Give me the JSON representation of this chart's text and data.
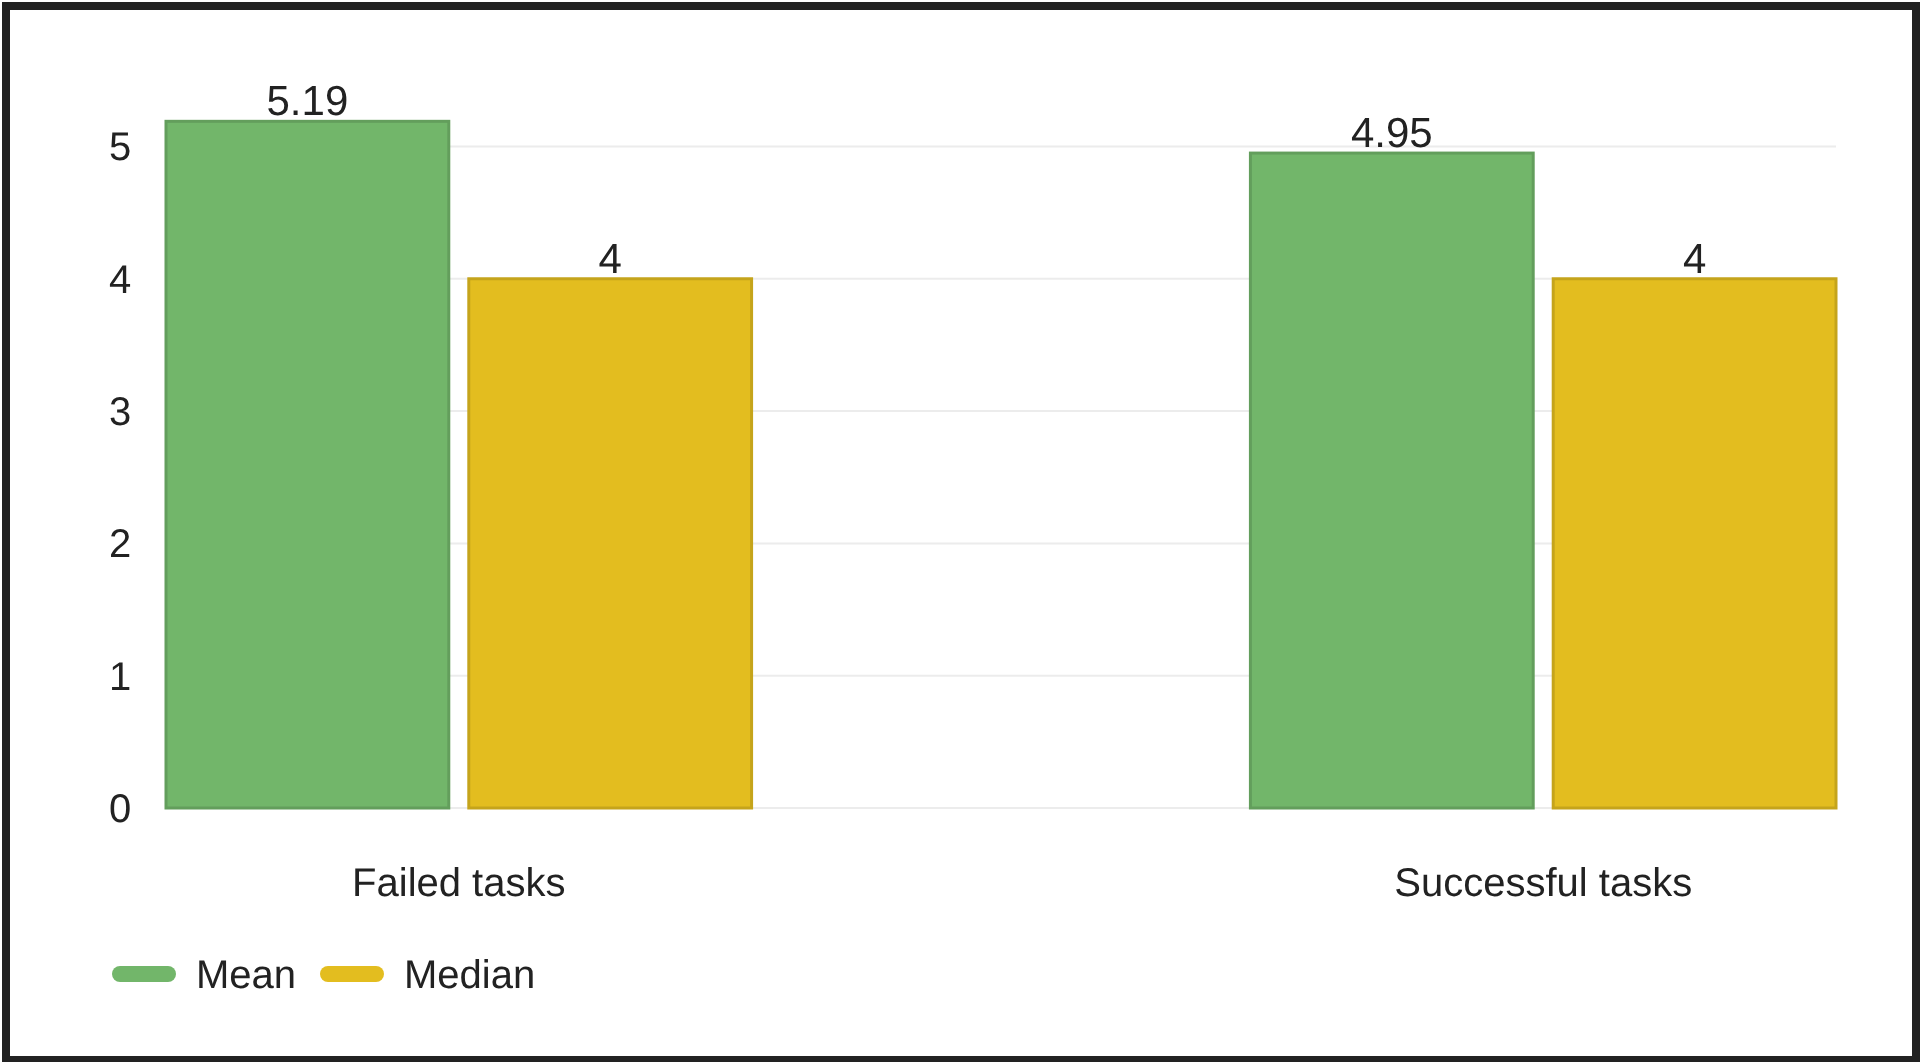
{
  "chart_data": {
    "type": "bar",
    "categories": [
      "Failed tasks",
      "Successful tasks"
    ],
    "series": [
      {
        "name": "Mean",
        "color": "#72b66a",
        "values": [
          5.19,
          4.95
        ]
      },
      {
        "name": "Median",
        "color": "#e3bd1f",
        "values": [
          4,
          4
        ]
      }
    ],
    "ylim": [
      0,
      5.2
    ],
    "yticks": [
      0,
      1,
      2,
      3,
      4,
      5
    ],
    "grid": "y",
    "legend": "bottom left",
    "data_labels": true
  }
}
